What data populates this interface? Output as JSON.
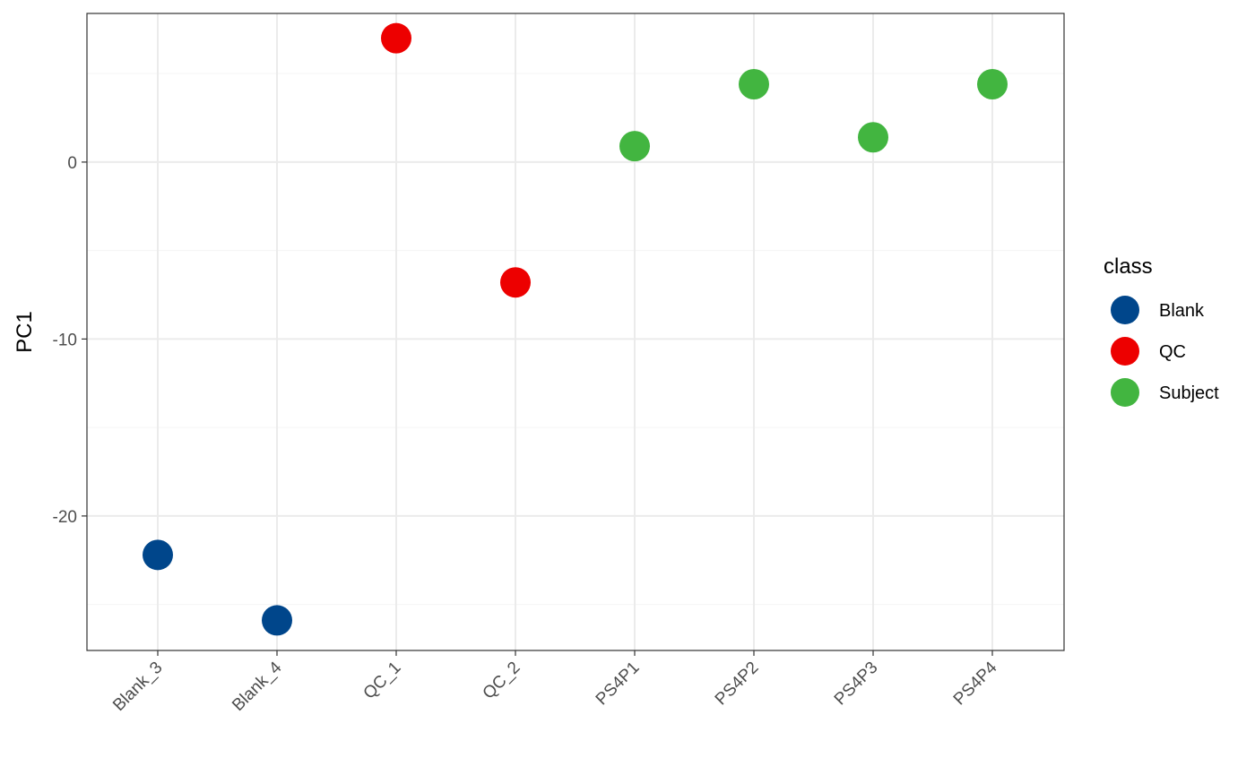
{
  "chart_data": {
    "type": "scatter",
    "title": "",
    "xlabel": "",
    "ylabel": "PC1",
    "categories": [
      "Blank_3",
      "Blank_4",
      "QC_1",
      "QC_2",
      "PS4P1",
      "PS4P2",
      "PS4P3",
      "PS4P4"
    ],
    "y_ticks": [
      0,
      -10,
      -20
    ],
    "ylim": [
      -27.6,
      8.4
    ],
    "grid": true,
    "legend": {
      "title": "class",
      "placement": "right",
      "entries": [
        {
          "name": "Blank",
          "color": "#00468B"
        },
        {
          "name": "QC",
          "color": "#ED0000"
        },
        {
          "name": "Subject",
          "color": "#42B540"
        }
      ]
    },
    "points": [
      {
        "x": "Blank_3",
        "y": -22.2,
        "class": "Blank"
      },
      {
        "x": "Blank_4",
        "y": -25.9,
        "class": "Blank"
      },
      {
        "x": "QC_1",
        "y": 7.0,
        "class": "QC"
      },
      {
        "x": "QC_2",
        "y": -6.8,
        "class": "QC"
      },
      {
        "x": "PS4P1",
        "y": 0.9,
        "class": "Subject"
      },
      {
        "x": "PS4P2",
        "y": 4.4,
        "class": "Subject"
      },
      {
        "x": "PS4P3",
        "y": 1.4,
        "class": "Subject"
      },
      {
        "x": "PS4P4",
        "y": 4.4,
        "class": "Subject"
      }
    ]
  }
}
